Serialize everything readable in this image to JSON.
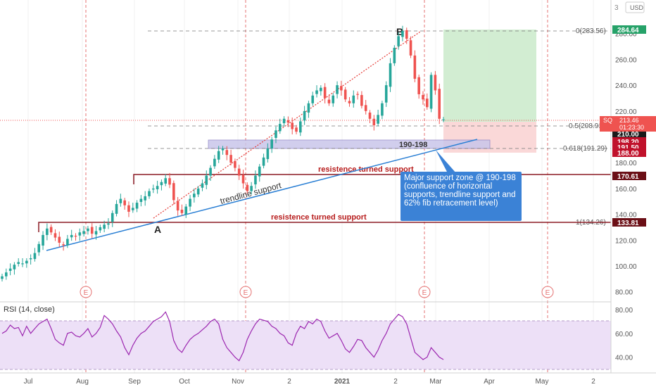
{
  "header": {
    "currency": "USD",
    "zoom_label": "3"
  },
  "price_badges": [
    {
      "label": "284.64",
      "color": "#26a269"
    },
    {
      "label": "210.00",
      "color": "#1a1a1a"
    },
    {
      "label": "198.20",
      "color": "#c0112b"
    },
    {
      "label": "191.50",
      "color": "#c0112b"
    },
    {
      "label": "188.00",
      "color": "#c0112b"
    },
    {
      "label": "170.61",
      "color": "#6b0f16"
    },
    {
      "label": "133.81",
      "color": "#6b0f16"
    }
  ],
  "sq_badge": {
    "ticker": "SQ",
    "price": "213.46",
    "countdown": "01:23:30",
    "color": "#ef5350"
  },
  "annotations": {
    "point_a": "A",
    "point_b": "B",
    "zone_label": "190-198",
    "upper_support": "resistence turned support",
    "lower_support": "resistence turned support",
    "trendline": "trendline support",
    "callout": "Major support zone @ 190-198 (confluence of horizontal supports, trendline support and 62% fib retracement level)",
    "fib_0": "0(283.56)",
    "fib_05": "0.5(208.91)",
    "fib_0618": "0.618(191.29)",
    "fib_1": "1(134.26)",
    "earnings_marker": "E"
  },
  "colors": {
    "up": "#26a69a",
    "down": "#ef5350",
    "trendline": "#2a7fd4",
    "zone_fill": "#c9c6ea",
    "support_line": "#8b1a24",
    "callout_bg": "#3b82d6",
    "rsi_line": "#9c27b0",
    "rsi_band": "#ede0f7",
    "profit_box": "#cdebcd",
    "loss_box": "#f9d4d4"
  },
  "chart_data": [
    {
      "type": "candlestick",
      "title": "",
      "xlabel": "",
      "ylabel": "",
      "ylim": [
        70,
        300
      ],
      "x_ticks": [
        "Jul",
        "Aug",
        "Sep",
        "Oct",
        "Nov",
        "2",
        "2021",
        "2",
        "Mar",
        "Apr",
        "May",
        "2"
      ],
      "y_ticks": [
        80,
        100,
        120,
        140,
        160,
        180,
        200,
        220,
        240,
        260,
        280
      ],
      "close": [
        92,
        95,
        98,
        101,
        103,
        102,
        104,
        106,
        110,
        117,
        124,
        129,
        126,
        122,
        118,
        116,
        121,
        124,
        123,
        126,
        127,
        129,
        125,
        127,
        130,
        132,
        133,
        141,
        148,
        152,
        147,
        142,
        145,
        149,
        152,
        154,
        158,
        160,
        162,
        165,
        168,
        163,
        151,
        143,
        141,
        146,
        152,
        156,
        160,
        164,
        170,
        176,
        183,
        189,
        191,
        186,
        180,
        176,
        170,
        164,
        158,
        162,
        170,
        177,
        184,
        191,
        198,
        205,
        210,
        214,
        211,
        206,
        204,
        212,
        220,
        226,
        232,
        236,
        238,
        230,
        226,
        232,
        240,
        236,
        229,
        226,
        232,
        233,
        224,
        220,
        214,
        209,
        217,
        226,
        240,
        257,
        269,
        278,
        282,
        276,
        263,
        245,
        233,
        229,
        223,
        248,
        236,
        214,
        213.46
      ],
      "rsi": {
        "title": "RSI (14, close)",
        "ylim": [
          28,
          88
        ],
        "y_ticks": [
          40,
          60,
          80
        ],
        "band": [
          30,
          70
        ],
        "values": [
          60,
          62,
          67,
          64,
          65,
          58,
          66,
          60,
          64,
          68,
          70,
          72,
          64,
          55,
          52,
          50,
          60,
          61,
          58,
          57,
          60,
          64,
          57,
          60,
          65,
          75,
          72,
          68,
          62,
          57,
          48,
          42,
          50,
          56,
          60,
          62,
          66,
          70,
          72,
          74,
          78,
          70,
          54,
          47,
          44,
          50,
          55,
          58,
          60,
          63,
          66,
          70,
          72,
          68,
          55,
          48,
          44,
          40,
          37,
          44,
          55,
          62,
          68,
          72,
          71,
          70,
          66,
          64,
          60,
          58,
          52,
          50,
          60,
          66,
          64,
          70,
          68,
          72,
          70,
          62,
          56,
          58,
          60,
          54,
          47,
          44,
          49,
          55,
          54,
          48,
          44,
          40,
          46,
          54,
          60,
          68,
          72,
          76,
          74,
          68,
          56,
          44,
          41,
          38,
          40,
          48,
          44,
          40,
          38
        ]
      }
    }
  ]
}
